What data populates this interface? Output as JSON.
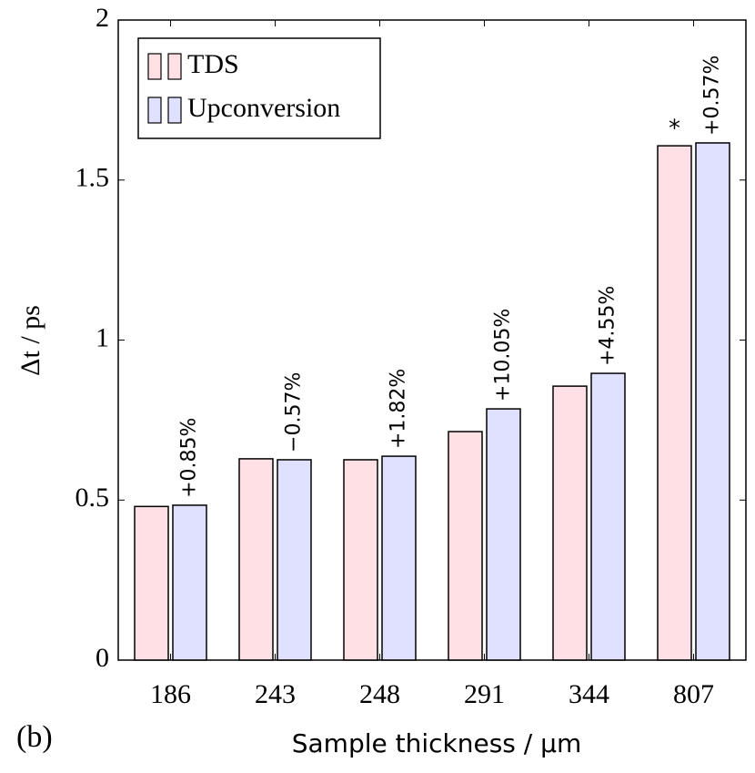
{
  "chart_data": {
    "type": "bar",
    "panel_label": "(b)",
    "x_label": "Sample thickness / µm",
    "y_label": "Δt / ps",
    "categories": [
      "186",
      "243",
      "248",
      "291",
      "344",
      "807"
    ],
    "series": [
      {
        "name": "TDS",
        "color": "#ffe0e4",
        "values": [
          0.48,
          0.629,
          0.626,
          0.714,
          0.856,
          1.607
        ]
      },
      {
        "name": "Upconversion",
        "color": "#e0e0ff",
        "values": [
          0.484,
          0.626,
          0.637,
          0.785,
          0.896,
          1.616
        ]
      }
    ],
    "annotations": [
      "+0.85%",
      "−0.57%",
      "+1.82%",
      "+10.05%",
      "+4.55%",
      "+0.57%"
    ],
    "marker_note": "*",
    "ylim": [
      0,
      2
    ],
    "yticks": [
      0,
      0.5,
      1,
      1.5,
      2
    ],
    "legend": "top-left"
  }
}
